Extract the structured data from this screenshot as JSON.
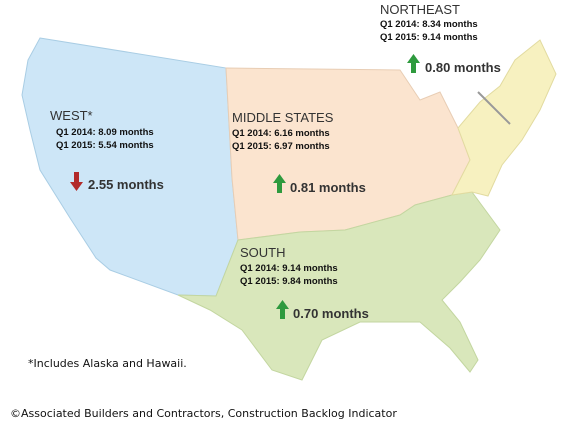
{
  "regions": [
    {
      "name": "WEST*",
      "q1_2014": "Q1 2014: 8.09 months",
      "q1_2015": "Q1 2015: 5.54 months",
      "change": "2.55 months"
    },
    {
      "name": "MIDDLE STATES",
      "q1_2014": "Q1 2014: 6.16 months",
      "q1_2015": "Q1 2015: 6.97 months",
      "change": "0.81 months"
    },
    {
      "name": "SOUTH",
      "q1_2014": "Q1 2014: 9.14 months",
      "q1_2015": "Q1 2015: 9.84 months",
      "change": "0.70 months"
    },
    {
      "name": "NORTHEAST",
      "q1_2014": "Q1 2014: 8.34 months",
      "q1_2015": "Q1 2015: 9.14 months",
      "change": "0.80 months"
    }
  ],
  "footnote": "*Includes Alaska and Hawaii.",
  "source": "©Associated Builders and Contractors, Construction Backlog Indicator"
}
